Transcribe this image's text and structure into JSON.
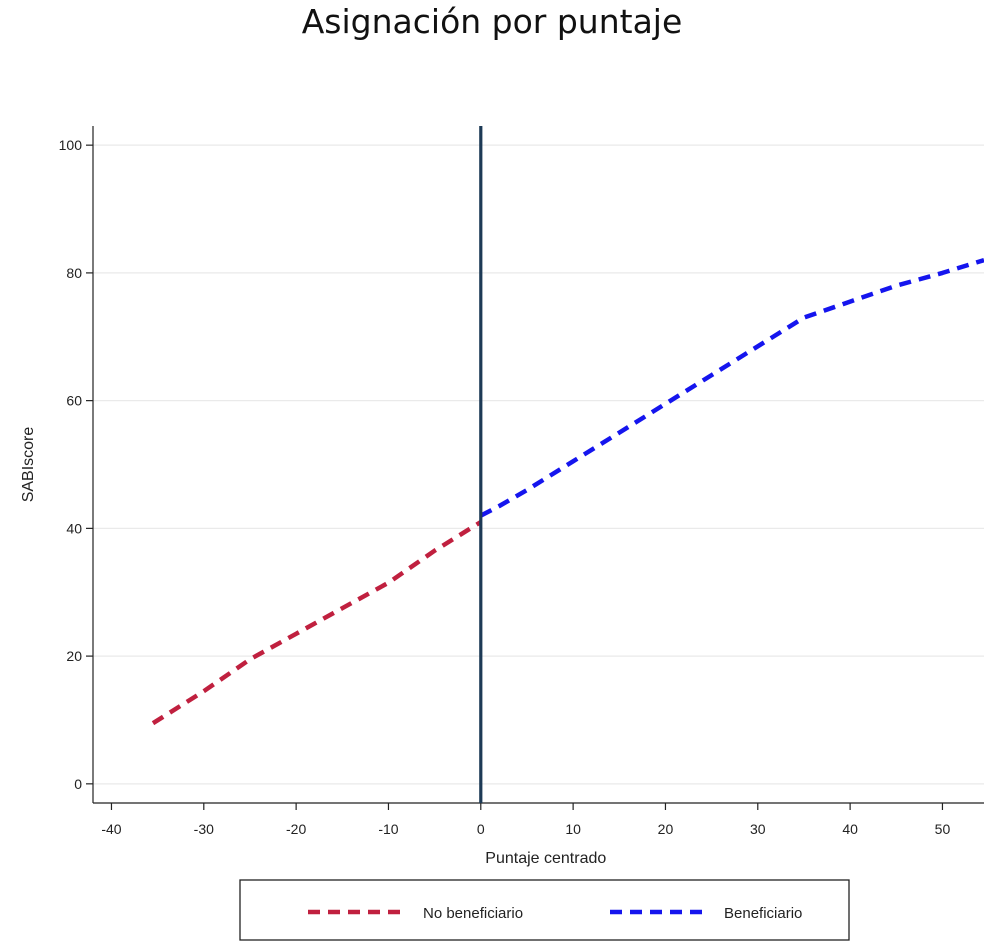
{
  "chart_data": {
    "type": "line",
    "title": "Asignación por puntaje",
    "xlabel": "Puntaje centrado",
    "ylabel": "SABIscore",
    "xlim": [
      -42,
      54.5
    ],
    "ylim": [
      -3,
      103
    ],
    "x_ticks": [
      -40,
      -30,
      -20,
      -10,
      0,
      10,
      20,
      30,
      40,
      50
    ],
    "y_ticks": [
      0,
      20,
      40,
      60,
      80,
      100
    ],
    "grid": "horizontal",
    "cutoff_x": 0,
    "legend_position": "bottom",
    "series": [
      {
        "name": "No beneficiario",
        "color": "#c0203f",
        "style": "dashed",
        "x": [
          -35.5,
          -30,
          -25,
          -20,
          -15,
          -10,
          -5,
          0
        ],
        "y": [
          9.5,
          14.5,
          19.5,
          23.5,
          27.5,
          31.5,
          36.5,
          41
        ]
      },
      {
        "name": "Beneficiario",
        "color": "#1515ee",
        "style": "dashed",
        "x": [
          0,
          2,
          5,
          10,
          15,
          20,
          25,
          30,
          35,
          40,
          45,
          50,
          54.5
        ],
        "y": [
          42,
          43.5,
          46,
          50.5,
          55,
          59.5,
          64,
          68.5,
          73,
          75.5,
          78,
          80,
          82
        ]
      }
    ]
  }
}
